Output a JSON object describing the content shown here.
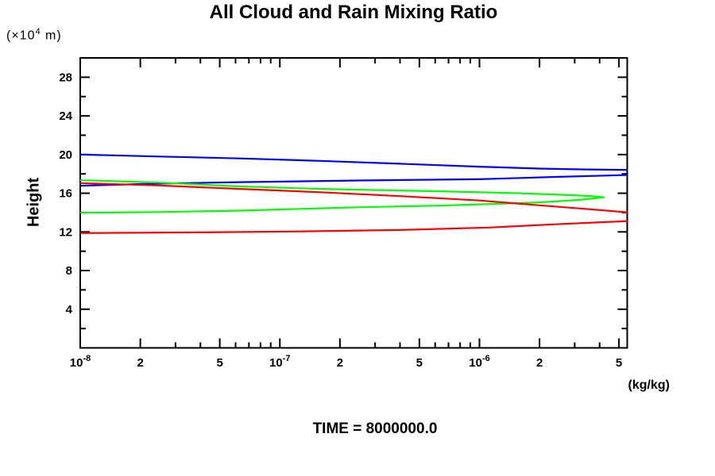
{
  "chart_data": {
    "type": "line",
    "title": "All Cloud and Rain Mixing Ratio",
    "caption": "TIME = 8000000.0",
    "grid": false,
    "legend": null,
    "y_axis": {
      "label": "Height",
      "unit_parts": {
        "pre": "(×10",
        "sup": "4",
        "post": " m)"
      },
      "range": [
        0,
        30
      ],
      "ticks": [
        {
          "value": 2,
          "major": false
        },
        {
          "value": 4,
          "label": "4",
          "major": true
        },
        {
          "value": 6,
          "major": false
        },
        {
          "value": 8,
          "label": "8",
          "major": true
        },
        {
          "value": 10,
          "major": false
        },
        {
          "value": 12,
          "label": "12",
          "major": true
        },
        {
          "value": 14,
          "major": false
        },
        {
          "value": 16,
          "label": "16",
          "major": true
        },
        {
          "value": 18,
          "major": false
        },
        {
          "value": 20,
          "label": "20",
          "major": true
        },
        {
          "value": 22,
          "major": false
        },
        {
          "value": 24,
          "label": "24",
          "major": true
        },
        {
          "value": 26,
          "major": false
        },
        {
          "value": 28,
          "label": "28",
          "major": true
        }
      ]
    },
    "x_axis": {
      "label_unit": "(kg/kg)",
      "scale": "log",
      "range": [
        1e-08,
        5.5e-06
      ],
      "ticks": [
        {
          "value": 1e-08,
          "label": "10^-8",
          "major": true
        },
        {
          "value": 2e-08,
          "label": "2",
          "major": true
        },
        {
          "value": 3e-08,
          "major": false
        },
        {
          "value": 4e-08,
          "major": false
        },
        {
          "value": 5e-08,
          "label": "5",
          "major": true
        },
        {
          "value": 6e-08,
          "major": false
        },
        {
          "value": 7e-08,
          "major": false
        },
        {
          "value": 8e-08,
          "major": false
        },
        {
          "value": 9e-08,
          "major": false
        },
        {
          "value": 1e-07,
          "label": "10^-7",
          "major": true
        },
        {
          "value": 2e-07,
          "label": "2",
          "major": true
        },
        {
          "value": 3e-07,
          "major": false
        },
        {
          "value": 4e-07,
          "major": false
        },
        {
          "value": 5e-07,
          "label": "5",
          "major": true
        },
        {
          "value": 6e-07,
          "major": false
        },
        {
          "value": 7e-07,
          "major": false
        },
        {
          "value": 8e-07,
          "major": false
        },
        {
          "value": 9e-07,
          "major": false
        },
        {
          "value": 1e-06,
          "label": "10^-6",
          "major": true
        },
        {
          "value": 2e-06,
          "label": "2",
          "major": true
        },
        {
          "value": 3e-06,
          "major": false
        },
        {
          "value": 4e-06,
          "major": false
        },
        {
          "value": 5e-06,
          "label": "5",
          "major": true
        }
      ]
    },
    "series": [
      {
        "name": "blue-profile",
        "color": "#0000ff",
        "points": [
          [
            1e-08,
            20.0
          ],
          [
            2.5e-08,
            19.8
          ],
          [
            6.3e-08,
            19.6
          ],
          [
            1.6e-07,
            19.35
          ],
          [
            4e-07,
            19.05
          ],
          [
            1e-06,
            18.75
          ],
          [
            2e-06,
            18.55
          ],
          [
            3.2e-06,
            18.47
          ],
          [
            5.3e-06,
            18.42
          ],
          [
            8.9e-06,
            18.3
          ],
          [
            1.12e-05,
            18.1
          ],
          [
            8.9e-06,
            17.95
          ],
          [
            5.3e-06,
            17.88
          ],
          [
            2.5e-06,
            17.7
          ],
          [
            1e-06,
            17.45
          ],
          [
            2.5e-07,
            17.32
          ],
          [
            6.3e-08,
            17.15
          ],
          [
            2.5e-08,
            17.0
          ],
          [
            1e-08,
            16.78
          ]
        ]
      },
      {
        "name": "green-profile",
        "color": "#00ff00",
        "points": [
          [
            1e-08,
            17.35
          ],
          [
            2.5e-08,
            17.1
          ],
          [
            6.3e-08,
            16.7
          ],
          [
            1.6e-07,
            16.45
          ],
          [
            4e-07,
            16.28
          ],
          [
            6.3e-07,
            16.2
          ],
          [
            1e-06,
            16.1
          ],
          [
            1.6e-06,
            16.0
          ],
          [
            2.5e-06,
            15.85
          ],
          [
            3.55e-06,
            15.72
          ],
          [
            4.2e-06,
            15.58
          ],
          [
            3.2e-06,
            15.32
          ],
          [
            2e-06,
            15.05
          ],
          [
            1e-06,
            14.85
          ],
          [
            6.3e-07,
            14.72
          ],
          [
            2.5e-07,
            14.55
          ],
          [
            6.3e-08,
            14.2
          ],
          [
            2.5e-08,
            14.05
          ],
          [
            1e-08,
            13.98
          ]
        ]
      },
      {
        "name": "red-profile",
        "color": "#ff0000",
        "points": [
          [
            1e-08,
            17.05
          ],
          [
            2.5e-08,
            16.8
          ],
          [
            6.3e-08,
            16.45
          ],
          [
            1.6e-07,
            16.1
          ],
          [
            4e-07,
            15.7
          ],
          [
            1e-06,
            15.25
          ],
          [
            2e-06,
            14.75
          ],
          [
            3.55e-06,
            14.35
          ],
          [
            5.3e-06,
            14.05
          ],
          [
            1e-05,
            13.75
          ],
          [
            1.26e-05,
            13.45
          ],
          [
            1e-05,
            13.25
          ],
          [
            5.3e-06,
            13.1
          ],
          [
            2.34e-06,
            12.78
          ],
          [
            1.12e-06,
            12.45
          ],
          [
            4e-07,
            12.2
          ],
          [
            1.26e-07,
            12.05
          ],
          [
            4e-08,
            11.95
          ],
          [
            1e-08,
            11.88
          ]
        ]
      }
    ]
  }
}
